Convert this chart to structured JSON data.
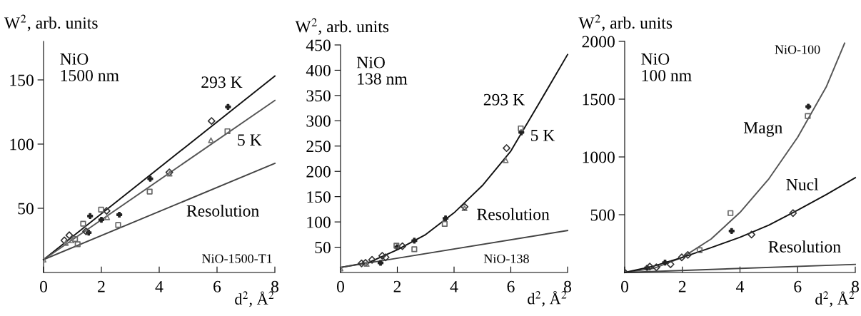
{
  "chart_data": [
    {
      "type": "line",
      "ylabel": "W$^{2}$, arb. units",
      "xlabel": "d$^{2}$, Å$^{2}$",
      "xlim": [
        0,
        8
      ],
      "xticks": [
        0,
        2,
        4,
        6,
        8
      ],
      "ylim": [
        0,
        180
      ],
      "yticks": [
        50,
        100,
        150
      ],
      "grid": false,
      "series": [
        {
          "color": "#111111",
          "x": [
            0,
            8
          ],
          "values": [
            10,
            153
          ]
        },
        {
          "color": "#555555",
          "x": [
            0,
            8
          ],
          "values": [
            10,
            134
          ]
        },
        {
          "color": "#444444",
          "x": [
            0,
            8
          ],
          "values": [
            10,
            85
          ]
        },
        {
          "type": "scatter",
          "marker": "cross",
          "color": "#222222",
          "x": [
            3.69,
            6.38,
            1.61,
            2.62,
            2.0,
            1.56
          ],
          "values": [
            73,
            129,
            44,
            45,
            41,
            31
          ]
        },
        {
          "type": "scatter",
          "marker": "diamond",
          "color": "#333333",
          "x": [
            5.81,
            0.89,
            0.72,
            2.18,
            4.35,
            1.47
          ],
          "values": [
            118,
            29,
            25,
            48,
            78,
            32
          ]
        },
        {
          "type": "scatter",
          "marker": "square",
          "color": "#666666",
          "x": [
            6.36,
            3.67,
            1.99,
            1.37,
            2.58,
            1.18,
            1.09
          ],
          "values": [
            110,
            63,
            49,
            38,
            37,
            22,
            26
          ]
        },
        {
          "type": "scatter",
          "marker": "triangle",
          "color": "#777777",
          "x": [
            5.79,
            4.36,
            2.2,
            0.77,
            0.97,
            0
          ],
          "values": [
            103,
            77,
            43,
            23,
            25,
            10
          ]
        }
      ],
      "annotations": [
        "NiO\n1500 nm",
        "NiO-1500-T1",
        "293 K",
        "5 K",
        "Resolution"
      ]
    },
    {
      "type": "line",
      "ylabel": "W$^{2}$, arb. units",
      "xlabel": "d$^{2}$, Å$^{2}$",
      "xlim": [
        0,
        8
      ],
      "xticks": [
        0,
        2,
        4,
        6,
        8
      ],
      "ylim": [
        0,
        450
      ],
      "yticks": [
        50,
        100,
        150,
        200,
        250,
        300,
        350,
        400,
        450
      ],
      "grid": false,
      "series": [
        {
          "color": "#111111",
          "x": [
            0,
            1,
            2,
            3,
            4,
            5,
            6,
            7,
            8
          ],
          "values": [
            10,
            20,
            45,
            75,
            118,
            172,
            240,
            335,
            431
          ]
        },
        {
          "color": "#444444",
          "x": [
            0,
            8
          ],
          "values": [
            10,
            83
          ]
        },
        {
          "type": "scatter",
          "marker": "cross",
          "color": "#222222",
          "x": [
            1.41,
            1.99,
            2.6,
            3.7,
            6.37
          ],
          "values": [
            19,
            50,
            63,
            107,
            277
          ]
        },
        {
          "type": "scatter",
          "marker": "diamond",
          "color": "#333333",
          "x": [
            0.74,
            0.88,
            1.11,
            1.47,
            1.59,
            2.18,
            4.37,
            5.85
          ],
          "values": [
            18,
            19,
            25,
            33,
            30,
            52,
            130,
            246
          ]
        },
        {
          "type": "scatter",
          "marker": "square",
          "color": "#666666",
          "x": [
            1.97,
            2.6,
            3.67,
            6.35
          ],
          "values": [
            53,
            46,
            96,
            285
          ]
        },
        {
          "type": "scatter",
          "marker": "triangle",
          "color": "#777777",
          "x": [
            5.82,
            4.37,
            0.92,
            0
          ],
          "values": [
            222,
            127,
            17,
            8
          ]
        }
      ],
      "annotations": [
        "NiO\n138 nm",
        "NiO-138",
        "293 K",
        "5 K",
        "Resolution"
      ]
    },
    {
      "type": "line",
      "ylabel": "W$^{2}$, arb. units",
      "xlabel": "d$^{2}$, Å$^{2}$",
      "xlim": [
        0,
        8
      ],
      "xticks": [
        0,
        2,
        4,
        6,
        8
      ],
      "ylim": [
        0,
        2000
      ],
      "yticks": [
        500,
        1000,
        1500,
        2000
      ],
      "grid": false,
      "series": [
        {
          "color": "#555555",
          "x": [
            0,
            1,
            2,
            3,
            4,
            5,
            6,
            7,
            7.63
          ],
          "values": [
            0,
            35,
            130,
            290,
            520,
            810,
            1170,
            1610,
            1984
          ]
        },
        {
          "color": "#111111",
          "x": [
            0,
            1,
            2,
            3,
            4,
            5,
            6,
            7,
            8
          ],
          "values": [
            0,
            55,
            130,
            215,
            305,
            410,
            540,
            675,
            820
          ]
        },
        {
          "color": "#444444",
          "x": [
            0,
            8
          ],
          "values": [
            0,
            70
          ]
        },
        {
          "type": "scatter",
          "marker": "cross",
          "color": "#222222",
          "x": [
            3.71,
            6.37,
            0.78,
            1.4
          ],
          "values": [
            359,
            1435,
            40,
            86
          ]
        },
        {
          "type": "scatter",
          "marker": "square",
          "color": "#666666",
          "x": [
            3.67,
            6.35,
            2.6
          ],
          "values": [
            514,
            1354,
            194
          ]
        },
        {
          "type": "scatter",
          "marker": "diamond",
          "color": "#333333",
          "x": [
            4.4,
            5.84,
            2.19,
            1.59,
            1.98,
            0.87,
            1.1,
            0
          ],
          "values": [
            328,
            514,
            152,
            71,
            131,
            51,
            45,
            0
          ]
        }
      ],
      "annotations": [
        "NiO\n100 nm",
        "NiO-100",
        "Magn",
        "Nucl",
        "Resolution"
      ]
    }
  ]
}
